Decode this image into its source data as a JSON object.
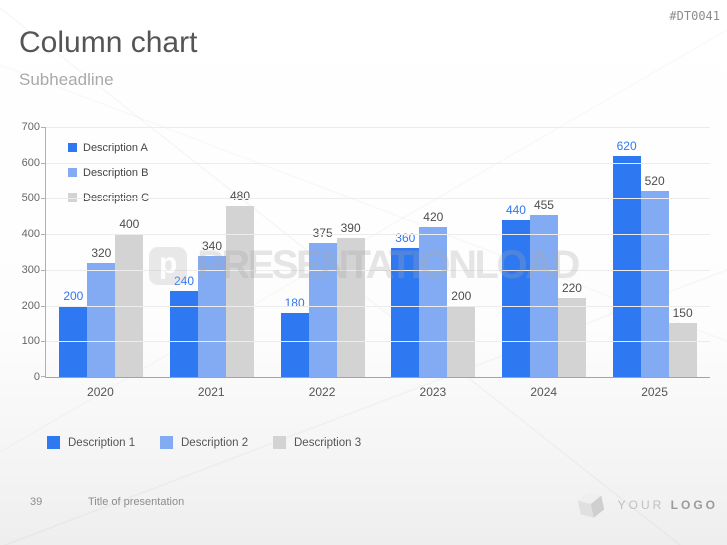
{
  "slide": {
    "title": "Column chart",
    "subheadline": "Subheadline",
    "tag": "#DT0041",
    "watermark": {
      "text": "PRESENTATIONLOAD",
      "icon_letter": "p"
    },
    "footer": {
      "page_number": "39",
      "title": "Title of presentation"
    },
    "logo": {
      "text_light": "YOUR",
      "text_bold": "LOGO"
    }
  },
  "colors": {
    "series_a": "#2e78f2",
    "series_b": "#82abf4",
    "series_c": "#d3d3d3",
    "value_label_a": "#2e78f2",
    "value_label_bc": "#4d4d4d"
  },
  "chart_data": {
    "type": "bar",
    "title": "",
    "xlabel": "",
    "ylabel": "",
    "categories": [
      "2020",
      "2021",
      "2022",
      "2023",
      "2024",
      "2025"
    ],
    "series": [
      {
        "name": "Description A",
        "color": "#2e78f2",
        "label_color": "#2e78f2",
        "values": [
          200,
          240,
          180,
          360,
          440,
          620
        ]
      },
      {
        "name": "Description B",
        "color": "#82abf4",
        "label_color": "#4d4d4d",
        "values": [
          320,
          340,
          375,
          420,
          455,
          520
        ]
      },
      {
        "name": "Description C",
        "color": "#d3d3d3",
        "label_color": "#4d4d4d",
        "values": [
          400,
          480,
          390,
          200,
          220,
          150
        ]
      }
    ],
    "ylim": [
      0,
      700
    ],
    "yticks": [
      0,
      100,
      200,
      300,
      400,
      500,
      600,
      700
    ],
    "grid": true,
    "legend_position": "inside-top-left and bottom",
    "legend_inside": [
      "Description A",
      "Description B",
      "Description C"
    ],
    "legend_bottom": [
      {
        "label": "Description 1",
        "color": "#2e78f2"
      },
      {
        "label": "Description 2",
        "color": "#82abf4"
      },
      {
        "label": "Description 3",
        "color": "#d3d3d3"
      }
    ]
  }
}
